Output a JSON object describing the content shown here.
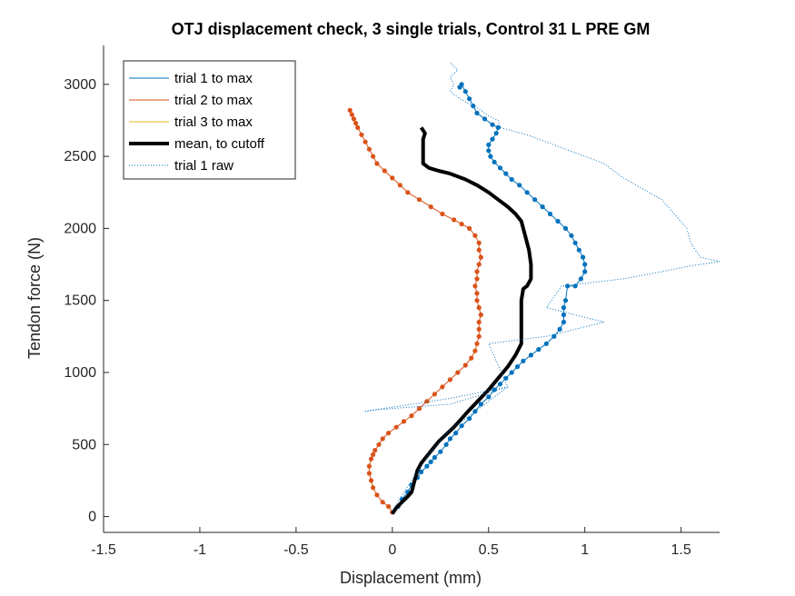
{
  "chart_data": {
    "type": "line",
    "title": "OTJ displacement check, 3 single trials, Control 31 L PRE GM",
    "xlabel": "Displacement (mm)",
    "ylabel": "Tendon force (N)",
    "xlim": [
      -1.5,
      1.7
    ],
    "ylim": [
      -110,
      3270
    ],
    "xticks": [
      -1.5,
      -1,
      -0.5,
      0,
      0.5,
      1,
      1.5
    ],
    "xtick_labels": [
      "-1.5",
      "-1",
      "-0.5",
      "0",
      "0.5",
      "1",
      "1.5"
    ],
    "yticks": [
      0,
      500,
      1000,
      1500,
      2000,
      2500,
      3000
    ],
    "ytick_labels": [
      "0",
      "500",
      "1000",
      "1500",
      "2000",
      "2500",
      "3000"
    ],
    "grid": false,
    "legend_position": "top-left",
    "legend": [
      {
        "label": "trial 1 to max",
        "color": "#0072BD",
        "style": "solid"
      },
      {
        "label": "trial 2 to max",
        "color": "#D95319",
        "style": "solid"
      },
      {
        "label": "trial 3 to max",
        "color": "#EDB120",
        "style": "solid"
      },
      {
        "label": "mean, to cutoff",
        "color": "#000000",
        "style": "thick"
      },
      {
        "label": "trial 1 raw",
        "color": "#0072BD",
        "style": "dotted"
      }
    ],
    "series": [
      {
        "name": "trial 1 to max",
        "color": "#0072BD",
        "style": "solid-markers",
        "x": [
          0.0,
          0.03,
          0.05,
          0.08,
          0.1,
          0.13,
          0.15,
          0.18,
          0.2,
          0.22,
          0.25,
          0.28,
          0.3,
          0.33,
          0.36,
          0.4,
          0.43,
          0.46,
          0.5,
          0.53,
          0.56,
          0.59,
          0.62,
          0.65,
          0.68,
          0.72,
          0.76,
          0.8,
          0.84,
          0.87,
          0.89,
          0.89,
          0.89,
          0.9,
          0.91,
          0.95,
          0.98,
          1.0,
          1.0,
          0.99,
          0.97,
          0.95,
          0.93,
          0.9,
          0.86,
          0.82,
          0.78,
          0.74,
          0.7,
          0.66,
          0.62,
          0.59,
          0.56,
          0.53,
          0.51,
          0.5,
          0.5,
          0.52,
          0.54,
          0.55,
          0.52,
          0.48,
          0.44,
          0.42,
          0.4,
          0.38,
          0.36,
          0.35
        ],
        "y": [
          30,
          70,
          120,
          170,
          220,
          270,
          310,
          350,
          380,
          410,
          450,
          500,
          540,
          580,
          630,
          680,
          730,
          780,
          830,
          880,
          920,
          960,
          1000,
          1040,
          1080,
          1120,
          1160,
          1200,
          1250,
          1300,
          1350,
          1400,
          1450,
          1500,
          1600,
          1600,
          1650,
          1700,
          1750,
          1800,
          1850,
          1900,
          1950,
          2000,
          2050,
          2100,
          2150,
          2200,
          2250,
          2300,
          2340,
          2380,
          2420,
          2460,
          2500,
          2540,
          2580,
          2620,
          2660,
          2700,
          2720,
          2760,
          2800,
          2850,
          2900,
          2950,
          3000,
          2980
        ]
      },
      {
        "name": "trial 2 to max",
        "color": "#D95319",
        "style": "solid-markers",
        "x": [
          0.0,
          -0.02,
          -0.05,
          -0.08,
          -0.1,
          -0.11,
          -0.12,
          -0.12,
          -0.11,
          -0.1,
          -0.09,
          -0.07,
          -0.05,
          -0.02,
          0.02,
          0.06,
          0.1,
          0.14,
          0.18,
          0.22,
          0.26,
          0.3,
          0.34,
          0.38,
          0.41,
          0.43,
          0.44,
          0.45,
          0.45,
          0.45,
          0.46,
          0.45,
          0.44,
          0.44,
          0.43,
          0.44,
          0.44,
          0.45,
          0.46,
          0.45,
          0.45,
          0.43,
          0.4,
          0.36,
          0.32,
          0.26,
          0.2,
          0.14,
          0.08,
          0.04,
          0.0,
          -0.04,
          -0.08,
          -0.1,
          -0.12,
          -0.14,
          -0.16,
          -0.18,
          -0.19,
          -0.2,
          -0.21,
          -0.22
        ],
        "y": [
          30,
          70,
          100,
          150,
          200,
          250,
          300,
          350,
          400,
          430,
          460,
          500,
          540,
          580,
          620,
          660,
          700,
          750,
          800,
          850,
          900,
          950,
          1000,
          1050,
          1100,
          1150,
          1200,
          1250,
          1300,
          1350,
          1400,
          1450,
          1500,
          1550,
          1600,
          1650,
          1700,
          1750,
          1800,
          1850,
          1900,
          1950,
          2000,
          2030,
          2060,
          2100,
          2150,
          2200,
          2250,
          2300,
          2350,
          2400,
          2450,
          2500,
          2550,
          2600,
          2650,
          2700,
          2730,
          2760,
          2790,
          2820
        ]
      },
      {
        "name": "trial 3 to max",
        "color": "#EDB120",
        "style": "solid",
        "x": [],
        "y": []
      },
      {
        "name": "mean, to cutoff",
        "color": "#000000",
        "style": "thick",
        "x": [
          0.0,
          0.02,
          0.05,
          0.08,
          0.1,
          0.11,
          0.12,
          0.13,
          0.15,
          0.18,
          0.21,
          0.24,
          0.28,
          0.32,
          0.36,
          0.4,
          0.45,
          0.5,
          0.55,
          0.6,
          0.64,
          0.67,
          0.67,
          0.67,
          0.67,
          0.68,
          0.7,
          0.72,
          0.72,
          0.71,
          0.69,
          0.67,
          0.64,
          0.6,
          0.55,
          0.5,
          0.44,
          0.38,
          0.3,
          0.24,
          0.19,
          0.16,
          0.16,
          0.16,
          0.17,
          0.15
        ],
        "y": [
          20,
          60,
          100,
          140,
          170,
          220,
          270,
          320,
          370,
          420,
          470,
          520,
          570,
          620,
          680,
          740,
          810,
          880,
          960,
          1040,
          1120,
          1200,
          1300,
          1400,
          1500,
          1580,
          1600,
          1650,
          1750,
          1850,
          1950,
          2050,
          2100,
          2150,
          2200,
          2250,
          2300,
          2340,
          2380,
          2400,
          2420,
          2450,
          2550,
          2620,
          2660,
          2700
        ]
      },
      {
        "name": "trial 1 raw",
        "color": "#0072BD",
        "style": "dotted",
        "x": [
          0.0,
          0.1,
          0.2,
          0.3,
          0.4,
          0.5,
          0.6,
          0.3,
          -0.1,
          -0.14,
          0.3,
          0.6,
          0.5,
          0.8,
          1.1,
          0.8,
          0.88,
          1.2,
          1.4,
          1.55,
          1.7,
          1.6,
          1.55,
          1.53,
          1.4,
          1.2,
          1.1,
          0.9,
          0.7,
          0.56,
          0.55,
          0.5,
          0.45,
          0.35,
          0.3,
          0.32,
          0.3,
          0.34,
          0.3
        ],
        "y": [
          40,
          250,
          450,
          600,
          700,
          800,
          900,
          780,
          740,
          730,
          820,
          900,
          1200,
          1250,
          1350,
          1450,
          1600,
          1650,
          1700,
          1740,
          1770,
          1800,
          1900,
          2000,
          2200,
          2350,
          2450,
          2550,
          2650,
          2700,
          2750,
          2780,
          2830,
          2900,
          2950,
          3000,
          3050,
          3100,
          3150
        ]
      }
    ]
  }
}
